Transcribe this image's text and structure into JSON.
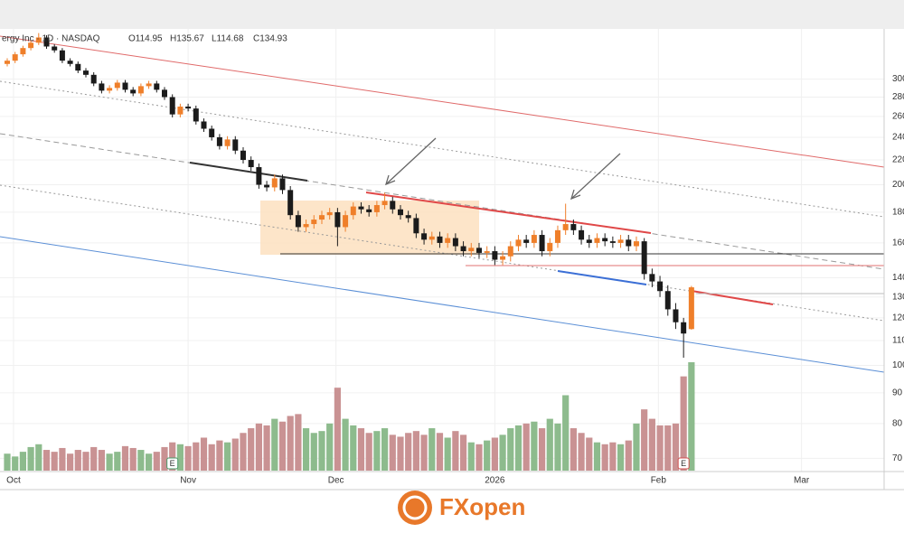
{
  "chart_data": {
    "type": "candlestick",
    "title": "ergy Inc · 1D · NASDAQ",
    "ohlc_labels": [
      "O114.95",
      "H135.67",
      "L114.68",
      "C134.93"
    ],
    "open": [
      318,
      322,
      330,
      338,
      345,
      352,
      340,
      335,
      322,
      318,
      310,
      305,
      295,
      287,
      290,
      296,
      288,
      284,
      292,
      295,
      288,
      280,
      262,
      270,
      268,
      255,
      248,
      240,
      232,
      238,
      228,
      220,
      214,
      200,
      198,
      205,
      196,
      178,
      170,
      172,
      175,
      178,
      180,
      170,
      178,
      184,
      182,
      180,
      185,
      188,
      182,
      178,
      176,
      166,
      162,
      164,
      160,
      163,
      158,
      155,
      157,
      154,
      155,
      150,
      152,
      158,
      162,
      160,
      165,
      155,
      160,
      168,
      172,
      168,
      162,
      160,
      163,
      161,
      160,
      162,
      158,
      161,
      142,
      138,
      133,
      124,
      118,
      114.95
    ],
    "high": [
      325,
      333,
      341,
      348,
      358,
      355,
      343,
      338,
      325,
      321,
      313,
      308,
      298,
      293,
      299,
      299,
      291,
      295,
      298,
      298,
      291,
      283,
      273,
      273,
      271,
      258,
      251,
      243,
      241,
      241,
      231,
      223,
      217,
      203,
      208,
      208,
      199,
      181,
      175,
      178,
      181,
      183,
      183,
      181,
      187,
      187,
      185,
      188,
      194,
      191,
      185,
      181,
      179,
      169,
      167,
      167,
      166,
      166,
      161,
      160,
      160,
      158,
      158,
      155,
      161,
      165,
      165,
      168,
      168,
      163,
      171,
      186,
      175,
      171,
      165,
      166,
      166,
      164,
      165,
      165,
      164,
      163,
      145,
      141,
      136,
      127,
      120,
      135.67
    ],
    "low": [
      315,
      319,
      327,
      335,
      342,
      337,
      332,
      319,
      315,
      307,
      302,
      292,
      284,
      284,
      287,
      285,
      281,
      281,
      289,
      285,
      277,
      259,
      259,
      265,
      252,
      245,
      237,
      229,
      229,
      225,
      217,
      211,
      197,
      195,
      195,
      193,
      175,
      167,
      167,
      169,
      172,
      175,
      158,
      167,
      175,
      179,
      177,
      177,
      182,
      179,
      175,
      173,
      163,
      159,
      159,
      157,
      157,
      155,
      152,
      152,
      151,
      151,
      147,
      147,
      149,
      155,
      157,
      157,
      152,
      152,
      157,
      165,
      165,
      159,
      157,
      157,
      158,
      157,
      157,
      155,
      155,
      139,
      135,
      130,
      121,
      115,
      103,
      114.68
    ],
    "close": [
      322,
      330,
      338,
      345,
      352,
      340,
      335,
      322,
      318,
      310,
      305,
      295,
      287,
      290,
      296,
      288,
      284,
      292,
      295,
      288,
      280,
      262,
      270,
      268,
      255,
      248,
      240,
      232,
      238,
      228,
      220,
      214,
      200,
      198,
      205,
      196,
      178,
      170,
      172,
      175,
      178,
      180,
      170,
      178,
      184,
      182,
      180,
      185,
      188,
      182,
      178,
      176,
      166,
      162,
      164,
      160,
      163,
      158,
      155,
      157,
      154,
      155,
      150,
      152,
      158,
      162,
      160,
      165,
      155,
      160,
      168,
      172,
      168,
      162,
      160,
      163,
      161,
      160,
      162,
      158,
      161,
      142,
      138,
      133,
      124,
      118,
      113,
      134.93
    ],
    "volume": [
      18,
      15,
      20,
      25,
      28,
      22,
      20,
      24,
      18,
      22,
      20,
      25,
      22,
      18,
      20,
      26,
      24,
      22,
      18,
      20,
      25,
      30,
      28,
      26,
      30,
      35,
      28,
      32,
      30,
      34,
      40,
      45,
      50,
      48,
      55,
      52,
      58,
      60,
      45,
      40,
      42,
      50,
      88,
      55,
      48,
      45,
      40,
      42,
      45,
      38,
      36,
      40,
      42,
      38,
      45,
      40,
      35,
      42,
      38,
      30,
      28,
      32,
      35,
      38,
      45,
      48,
      50,
      52,
      45,
      55,
      50,
      80,
      45,
      40,
      35,
      30,
      28,
      30,
      28,
      32,
      50,
      65,
      55,
      48,
      48,
      50,
      100,
      115
    ],
    "earnings": [
      {
        "label": "E",
        "index": 21
      },
      {
        "label": "E",
        "index": 86
      }
    ],
    "xlim": [
      -0.92,
      111.5
    ],
    "xticks": [
      {
        "value": 0.8,
        "label": "Oct"
      },
      {
        "value": 23,
        "label": "Nov"
      },
      {
        "value": 41.8,
        "label": "Dec"
      },
      {
        "value": 62,
        "label": "2026"
      },
      {
        "value": 82.8,
        "label": "Feb"
      },
      {
        "value": 101,
        "label": "Mar"
      }
    ],
    "ylim": [
      67,
      360
    ],
    "yticks": [
      300,
      280,
      260,
      240,
      220,
      200,
      180,
      160,
      140,
      130,
      120,
      110,
      100,
      90,
      80,
      70
    ],
    "log_scale": true,
    "grid": true,
    "up_color": "#ef7f2a",
    "down_color": "#1b1b1b",
    "volume_up_color": "#8dbb8d",
    "volume_down_color": "#c99293",
    "brand": "FXopen"
  }
}
